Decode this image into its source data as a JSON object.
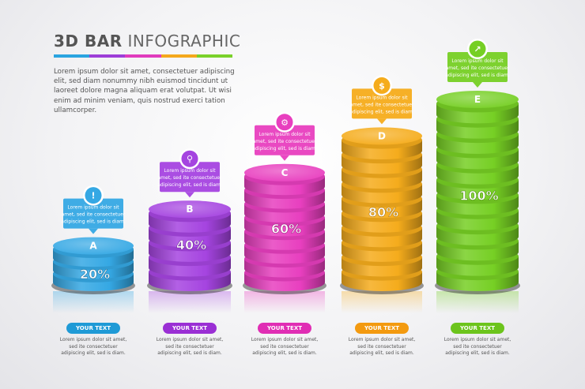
{
  "title": {
    "bold": "3D BAR",
    "light": "INFOGRAPHIC"
  },
  "title_bar_colors": [
    "#2aa4e0",
    "#9d3ed8",
    "#e03bbd",
    "#f4a81c",
    "#7ad12a"
  ],
  "intro": "Lorem ipsum dolor sit amet, consectetuer adipiscing elit, sed diam nonummy nibh euismod tincidunt ut laoreet dolore magna aliquam erat volutpat. Ut wisi enim ad minim veniam, quis nostrud exerci tation ullamcorper.",
  "chart_data": {
    "type": "bar",
    "categories": [
      "A",
      "B",
      "C",
      "D",
      "E"
    ],
    "values": [
      20,
      40,
      60,
      80,
      100
    ],
    "value_labels": [
      "20%",
      "40%",
      "60%",
      "80%",
      "100%"
    ],
    "ylim": [
      0,
      100
    ],
    "title": "3D BAR INFOGRAPHIC",
    "xlabel": "",
    "ylabel": "",
    "colors": [
      "#35a8e4",
      "#a544e0",
      "#e83fbf",
      "#f5ac1c",
      "#76cf24"
    ],
    "pill_colors": [
      "#1f9ad6",
      "#9a2fd4",
      "#e02eb4",
      "#f39a10",
      "#6cc41c"
    ],
    "icons": [
      "lightbulb-icon",
      "magnifier-icon",
      "gears-icon",
      "dollar-coin-icon",
      "growth-chart-icon"
    ]
  },
  "callout_text": "Lorem ipsum dolor sit amet, sed ite consectetuer adipiscing elit, sed is diam.",
  "items": [
    {
      "pill": "YOUR TEXT",
      "text": "Lorem ipsum dolor sit amet, sed ite consectetuer adipiscing elit, sed is diam."
    },
    {
      "pill": "YOUR TEXT",
      "text": "Lorem ipsum dolor sit amet, sed ite consectetuer adipiscing elit, sed is diam."
    },
    {
      "pill": "YOUR TEXT",
      "text": "Lorem ipsum dolor sit amet, sed ite consectetuer adipiscing elit, sed is diam."
    },
    {
      "pill": "YOUR TEXT",
      "text": "Lorem ipsum dolor sit amet, sed ite consectetuer adipiscing elit, sed is diam."
    },
    {
      "pill": "YOUR TEXT",
      "text": "Lorem ipsum dolor sit amet, sed ite consectetuer adipiscing elit, sed is diam."
    }
  ]
}
